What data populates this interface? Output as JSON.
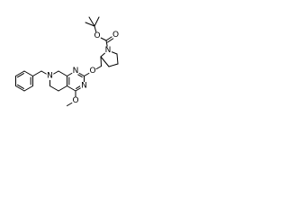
{
  "atom_labels": [
    "O",
    "O",
    "N",
    "O",
    "N",
    "N",
    "O",
    "N"
  ]
}
